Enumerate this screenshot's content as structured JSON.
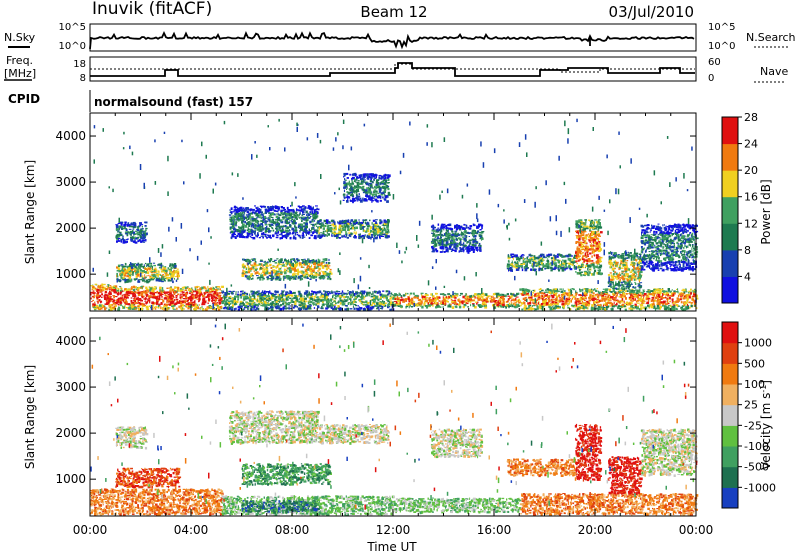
{
  "header": {
    "station": "Inuvik (fitACF)",
    "beam": "Beam 12",
    "date": "03/Jul/2010"
  },
  "panels": {
    "nsky": {
      "left_label": "N.Sky",
      "right_label": "N.Search",
      "left_ticks": [
        "10^5",
        "10^0"
      ],
      "right_ticks": [
        "10^5",
        "10^0"
      ]
    },
    "freq": {
      "left_label_1": "Freq.",
      "left_label_2": "[MHz]",
      "right_label": "Nave",
      "left_ticks": [
        "18",
        "8"
      ],
      "right_ticks": [
        "60",
        "0"
      ]
    },
    "cpid": {
      "label": "CPID",
      "value": "normalsound (fast) 157"
    }
  },
  "chart_data": [
    {
      "type": "heatmap",
      "title": "",
      "ylabel": "Slant Range [km]",
      "xlabel": "",
      "yticks": [
        "1000",
        "2000",
        "3000",
        "4000"
      ],
      "ylim": [
        200,
        4500
      ],
      "xlim": [
        "00:00",
        "24:00"
      ],
      "colorbar": {
        "label": "Power [dB]",
        "ticks": [
          "4",
          "8",
          "12",
          "16",
          "20",
          "24",
          "28"
        ],
        "colors": [
          "#1010e0",
          "#1840b0",
          "#1e7a50",
          "#40a060",
          "#f0d020",
          "#f07a10",
          "#e01010"
        ]
      },
      "features": [
        {
          "t0": 0.0,
          "t1": 1.0,
          "r0": 250,
          "r1": 800,
          "level": 6
        },
        {
          "t0": 1.0,
          "t1": 5.2,
          "r0": 250,
          "r1": 750,
          "level": 6
        },
        {
          "t0": 5.2,
          "t1": 12.0,
          "r0": 250,
          "r1": 650,
          "level": 3
        },
        {
          "t0": 12.0,
          "t1": 17.0,
          "r0": 300,
          "r1": 600,
          "level": 5
        },
        {
          "t0": 17.0,
          "t1": 24.0,
          "r0": 250,
          "r1": 700,
          "level": 5
        },
        {
          "t0": 1.0,
          "t1": 3.5,
          "r0": 850,
          "r1": 1250,
          "level": 4
        },
        {
          "t0": 6.0,
          "t1": 9.5,
          "r0": 900,
          "r1": 1350,
          "level": 4
        },
        {
          "t0": 5.5,
          "t1": 9.0,
          "r0": 1800,
          "r1": 2500,
          "level": 2
        },
        {
          "t0": 9.0,
          "t1": 11.8,
          "r0": 1800,
          "r1": 2200,
          "level": 3
        },
        {
          "t0": 1.0,
          "t1": 2.2,
          "r0": 1700,
          "r1": 2150,
          "level": 2
        },
        {
          "t0": 13.5,
          "t1": 15.5,
          "r0": 1500,
          "r1": 2100,
          "level": 2
        },
        {
          "t0": 16.5,
          "t1": 19.2,
          "r0": 1100,
          "r1": 1450,
          "level": 3
        },
        {
          "t0": 19.2,
          "t1": 20.2,
          "r0": 1000,
          "r1": 2200,
          "level": 5
        },
        {
          "t0": 20.5,
          "t1": 21.8,
          "r0": 700,
          "r1": 1500,
          "level": 4
        },
        {
          "t0": 21.8,
          "t1": 24.0,
          "r0": 1100,
          "r1": 2100,
          "level": 2
        },
        {
          "t0": 10.0,
          "t1": 11.8,
          "r0": 2600,
          "r1": 3200,
          "level": 2
        }
      ]
    },
    {
      "type": "heatmap",
      "title": "",
      "ylabel": "Slant Range [km]",
      "xlabel": "Time UT",
      "xticks": [
        "00:00",
        "04:00",
        "08:00",
        "12:00",
        "16:00",
        "20:00",
        "00:00"
      ],
      "yticks": [
        "1000",
        "2000",
        "3000",
        "4000"
      ],
      "ylim": [
        200,
        4500
      ],
      "xlim": [
        "00:00",
        "24:00"
      ],
      "colorbar": {
        "label": "Velocity [m s^-1]",
        "ticks": [
          "1000",
          "500",
          "100",
          "25",
          "-25",
          "-100",
          "-500",
          "-1000"
        ],
        "colors": [
          "#1840c0",
          "#1e7050",
          "#40a060",
          "#60c040",
          "#c8c8c8",
          "#f0b060",
          "#f07a10",
          "#e04010",
          "#e01010"
        ]
      },
      "features": [
        {
          "t0": 0.0,
          "t1": 5.2,
          "r0": 250,
          "r1": 800,
          "level": 6
        },
        {
          "t0": 5.2,
          "t1": 12.0,
          "r0": 250,
          "r1": 650,
          "level": 3
        },
        {
          "t0": 12.0,
          "t1": 17.0,
          "r0": 300,
          "r1": 600,
          "level": 3
        },
        {
          "t0": 17.0,
          "t1": 24.0,
          "r0": 250,
          "r1": 700,
          "level": 6
        },
        {
          "t0": 1.0,
          "t1": 3.5,
          "r0": 850,
          "r1": 1250,
          "level": 7
        },
        {
          "t0": 6.0,
          "t1": 9.5,
          "r0": 900,
          "r1": 1350,
          "level": 2
        },
        {
          "t0": 5.5,
          "t1": 9.0,
          "r0": 1800,
          "r1": 2500,
          "level": 4
        },
        {
          "t0": 9.0,
          "t1": 11.8,
          "r0": 1800,
          "r1": 2200,
          "level": 4
        },
        {
          "t0": 1.0,
          "t1": 2.2,
          "r0": 1700,
          "r1": 2150,
          "level": 4
        },
        {
          "t0": 13.5,
          "t1": 15.5,
          "r0": 1500,
          "r1": 2100,
          "level": 4
        },
        {
          "t0": 16.5,
          "t1": 19.2,
          "r0": 1100,
          "r1": 1450,
          "level": 6
        },
        {
          "t0": 19.2,
          "t1": 20.2,
          "r0": 1000,
          "r1": 2200,
          "level": 8
        },
        {
          "t0": 20.5,
          "t1": 21.8,
          "r0": 700,
          "r1": 1500,
          "level": 8
        },
        {
          "t0": 21.8,
          "t1": 24.0,
          "r0": 1100,
          "r1": 2100,
          "level": 4
        },
        {
          "t0": 6.0,
          "t1": 9.0,
          "r0": 300,
          "r1": 550,
          "level": 1
        }
      ]
    }
  ]
}
